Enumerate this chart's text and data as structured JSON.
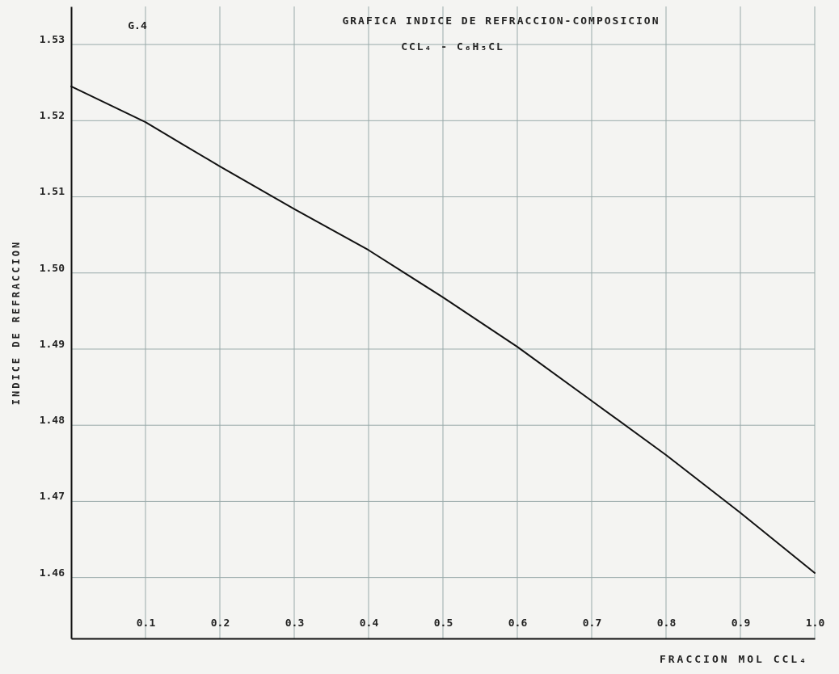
{
  "chart_data": {
    "type": "line",
    "title": "GRAFICA INDICE DE REFRACCION-COMPOSICION",
    "subtitle": "CCL₄ - C₆H₅CL",
    "annotations": [
      "G.4"
    ],
    "xlabel": "FRACCION MOL CCL₄",
    "ylabel": "INDICE DE REFRACCION",
    "x": [
      0,
      0.1,
      0.15,
      0.2,
      0.3,
      0.4,
      0.5,
      0.6,
      0.7,
      0.8,
      0.9,
      1.0
    ],
    "series": [
      {
        "color": "#111111",
        "values": [
          1.5245,
          1.5198,
          1.5169,
          1.514,
          1.5084,
          1.503,
          1.4968,
          1.4903,
          1.4832,
          1.4761,
          1.4685,
          1.4606
        ]
      }
    ],
    "xlim": [
      0,
      1
    ],
    "ylim": [
      1.452,
      1.535
    ],
    "xticks": [
      {
        "value": 0.1,
        "label": "0.1"
      },
      {
        "value": 0.2,
        "label": "0.2"
      },
      {
        "value": 0.3,
        "label": "0.3"
      },
      {
        "value": 0.4,
        "label": "0.4"
      },
      {
        "value": 0.5,
        "label": "0.5"
      },
      {
        "value": 0.6,
        "label": "0.6"
      },
      {
        "value": 0.7,
        "label": "0.7"
      },
      {
        "value": 0.8,
        "label": "0.8"
      },
      {
        "value": 0.9,
        "label": "0.9"
      },
      {
        "value": 1,
        "label": "1.0"
      }
    ],
    "yticks": [
      {
        "value": 1.46,
        "label": "1.46"
      },
      {
        "value": 1.47,
        "label": "1.47"
      },
      {
        "value": 1.48,
        "label": "1.48"
      },
      {
        "value": 1.49,
        "label": "1.49"
      },
      {
        "value": 1.5,
        "label": "1.50"
      },
      {
        "value": 1.51,
        "label": "1.51"
      },
      {
        "value": 1.52,
        "label": "1.52"
      },
      {
        "value": 1.53,
        "label": "1.53"
      }
    ],
    "grid": true,
    "marker": "none",
    "line_style": "solid"
  }
}
